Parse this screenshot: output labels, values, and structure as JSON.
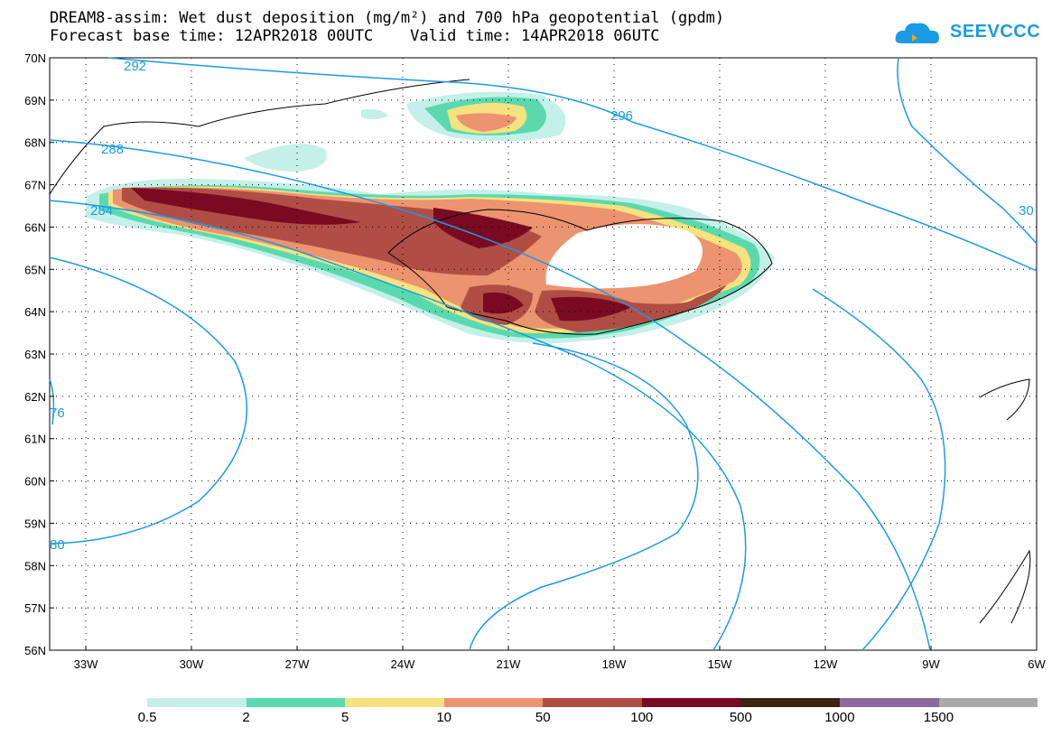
{
  "header": {
    "title_line1": "DREAM8-assim: Wet dust deposition (mg/m²) and 700 hPa geopotential (gpdm)",
    "title_line2": "Forecast base time: 12APR2018 00UTC    Valid time: 14APR2018 06UTC",
    "logo_text": "SEEVCCC",
    "logo_icon": "cloud-icon"
  },
  "axes": {
    "lat_labels": [
      "70N",
      "69N",
      "68N",
      "67N",
      "66N",
      "65N",
      "64N",
      "63N",
      "62N",
      "61N",
      "60N",
      "59N",
      "58N",
      "57N",
      "56N"
    ],
    "lon_labels": [
      "33W",
      "30W",
      "27W",
      "24W",
      "21W",
      "18W",
      "15W",
      "12W",
      "9W",
      "6W"
    ]
  },
  "contours": {
    "color": "#1a9be6",
    "labels": [
      "292",
      "296",
      "288",
      "284",
      "30",
      "76",
      "80"
    ]
  },
  "legend": {
    "colors": [
      "#c4f0e9",
      "#5bd9ae",
      "#f6e27e",
      "#ec9370",
      "#b04e45",
      "#7a0a22",
      "#3b2414",
      "#8b6a9e",
      "#a9a9a9"
    ],
    "labels": [
      "0.5",
      "2",
      "5",
      "10",
      "50",
      "100",
      "500",
      "1000",
      "1500"
    ]
  }
}
